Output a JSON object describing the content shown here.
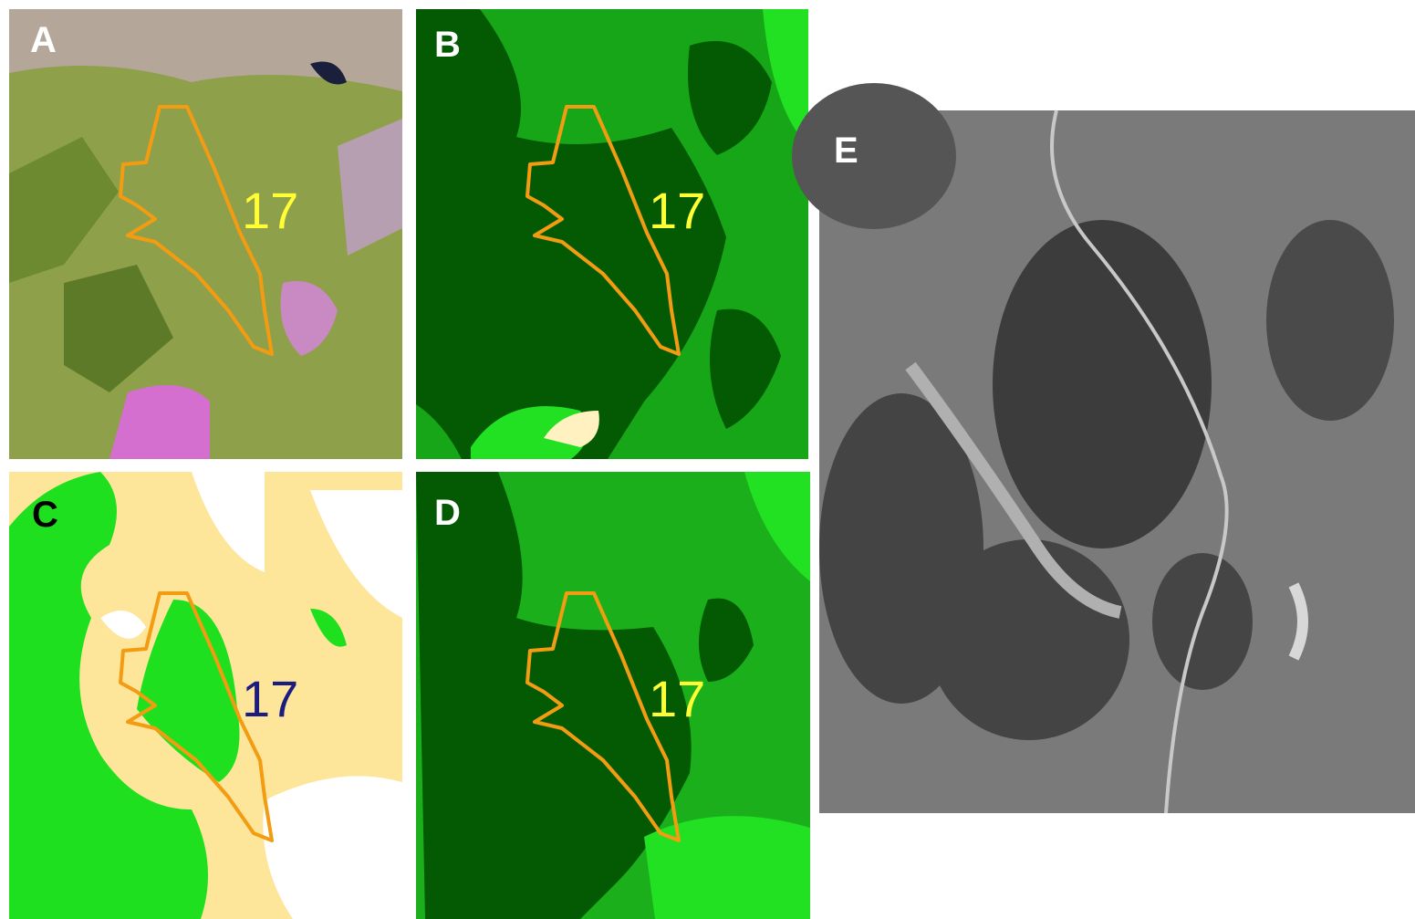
{
  "panels": [
    {
      "label": "A",
      "annotation": "17"
    },
    {
      "label": "B",
      "annotation": "17"
    },
    {
      "label": "C",
      "annotation": "17"
    },
    {
      "label": "D",
      "annotation": "17"
    },
    {
      "label": "E"
    }
  ]
}
